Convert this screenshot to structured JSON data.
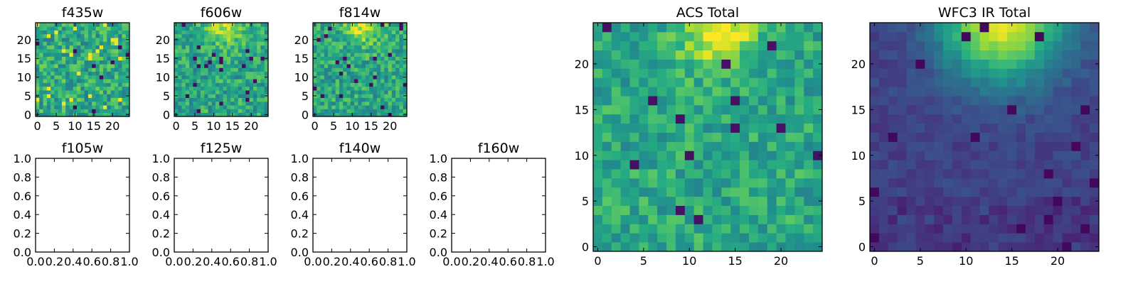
{
  "chart_data": [
    {
      "id": "f435w",
      "type": "heatmap",
      "title": "f435w",
      "image_size": [
        25,
        25
      ],
      "xlim": [
        -0.5,
        24.5
      ],
      "ylim": [
        -0.5,
        24.5
      ],
      "xticks": [
        0,
        5,
        10,
        15,
        20
      ],
      "yticks": [
        0,
        5,
        10,
        15,
        20
      ],
      "colormap": "viridis",
      "seed": 11,
      "profile": "noise",
      "z": null
    },
    {
      "id": "f606w",
      "type": "heatmap",
      "title": "f606w",
      "image_size": [
        25,
        25
      ],
      "xlim": [
        -0.5,
        24.5
      ],
      "ylim": [
        -0.5,
        24.5
      ],
      "xticks": [
        0,
        5,
        10,
        15,
        20
      ],
      "yticks": [
        0,
        5,
        10,
        15,
        20
      ],
      "colormap": "viridis",
      "seed": 23,
      "profile": "top_glow",
      "z": null
    },
    {
      "id": "f814w",
      "type": "heatmap",
      "title": "f814w",
      "image_size": [
        25,
        25
      ],
      "xlim": [
        -0.5,
        24.5
      ],
      "ylim": [
        -0.5,
        24.5
      ],
      "xticks": [
        0,
        5,
        10,
        15,
        20
      ],
      "yticks": [
        0,
        5,
        10,
        15,
        20
      ],
      "colormap": "viridis",
      "seed": 37,
      "profile": "top_glow",
      "z": null
    },
    {
      "id": "f105w",
      "type": "empty",
      "title": "f105w",
      "xlim": [
        0,
        1
      ],
      "ylim": [
        0,
        1
      ],
      "xticks": [
        "0.0",
        "0.2",
        "0.4",
        "0.6",
        "0.8",
        "1.0"
      ],
      "yticks": [
        "0.0",
        "0.2",
        "0.4",
        "0.6",
        "0.8",
        "1.0"
      ]
    },
    {
      "id": "f125w",
      "type": "empty",
      "title": "f125w",
      "xlim": [
        0,
        1
      ],
      "ylim": [
        0,
        1
      ],
      "xticks": [
        "0.0",
        "0.2",
        "0.4",
        "0.6",
        "0.8",
        "1.0"
      ],
      "yticks": [
        "0.0",
        "0.2",
        "0.4",
        "0.6",
        "0.8",
        "1.0"
      ]
    },
    {
      "id": "f140w",
      "type": "empty",
      "title": "f140w",
      "xlim": [
        0,
        1
      ],
      "ylim": [
        0,
        1
      ],
      "xticks": [
        "0.0",
        "0.2",
        "0.4",
        "0.6",
        "0.8",
        "1.0"
      ],
      "yticks": [
        "0.0",
        "0.2",
        "0.4",
        "0.6",
        "0.8",
        "1.0"
      ]
    },
    {
      "id": "f160w",
      "type": "empty",
      "title": "f160w",
      "xlim": [
        0,
        1
      ],
      "ylim": [
        0,
        1
      ],
      "xticks": [
        "0.0",
        "0.2",
        "0.4",
        "0.6",
        "0.8",
        "1.0"
      ],
      "yticks": [
        "0.0",
        "0.2",
        "0.4",
        "0.6",
        "0.8",
        "1.0"
      ]
    },
    {
      "id": "acs_total",
      "type": "heatmap",
      "title": "ACS Total",
      "image_size": [
        25,
        25
      ],
      "xlim": [
        -0.5,
        24.5
      ],
      "ylim": [
        -0.5,
        24.5
      ],
      "xticks": [
        0,
        5,
        10,
        15,
        20
      ],
      "yticks": [
        0,
        5,
        10,
        15,
        20
      ],
      "colormap": "viridis",
      "seed": 53,
      "profile": "acs",
      "z": null
    },
    {
      "id": "wfc3_ir_total",
      "type": "heatmap",
      "title": "WFC3 IR Total",
      "image_size": [
        25,
        25
      ],
      "xlim": [
        -0.5,
        24.5
      ],
      "ylim": [
        -0.5,
        24.5
      ],
      "xticks": [
        0,
        5,
        10,
        15,
        20
      ],
      "yticks": [
        0,
        5,
        10,
        15,
        20
      ],
      "colormap": "viridis",
      "seed": 71,
      "profile": "ir",
      "z": null
    }
  ]
}
